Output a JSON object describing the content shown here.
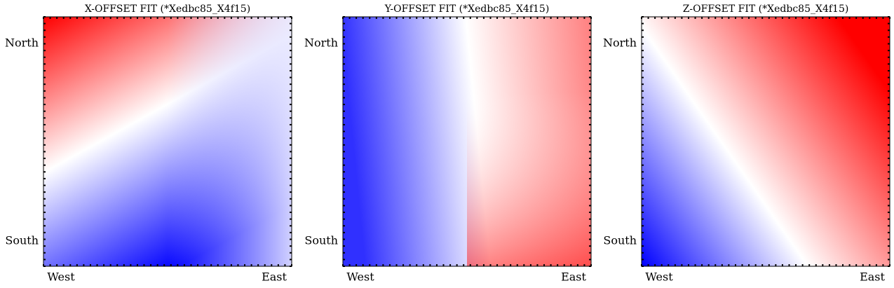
{
  "chart_data": [
    {
      "type": "heatmap",
      "title": "X-OFFSET FIT (*Xedbc85_X4f15)",
      "x_labels": [
        "West",
        "East"
      ],
      "y_labels": [
        "North",
        "South"
      ]
    },
    {
      "type": "heatmap",
      "title": "Y-OFFSET FIT (*Xedbc85_X4f15)",
      "x_labels": [
        "West",
        "East"
      ],
      "y_labels": [
        "North",
        "South"
      ]
    },
    {
      "type": "heatmap",
      "title": "Z-OFFSET FIT (*Xedbc85_X4f15)",
      "x_labels": [
        "West",
        "East"
      ],
      "y_labels": [
        "North",
        "South"
      ]
    }
  ]
}
